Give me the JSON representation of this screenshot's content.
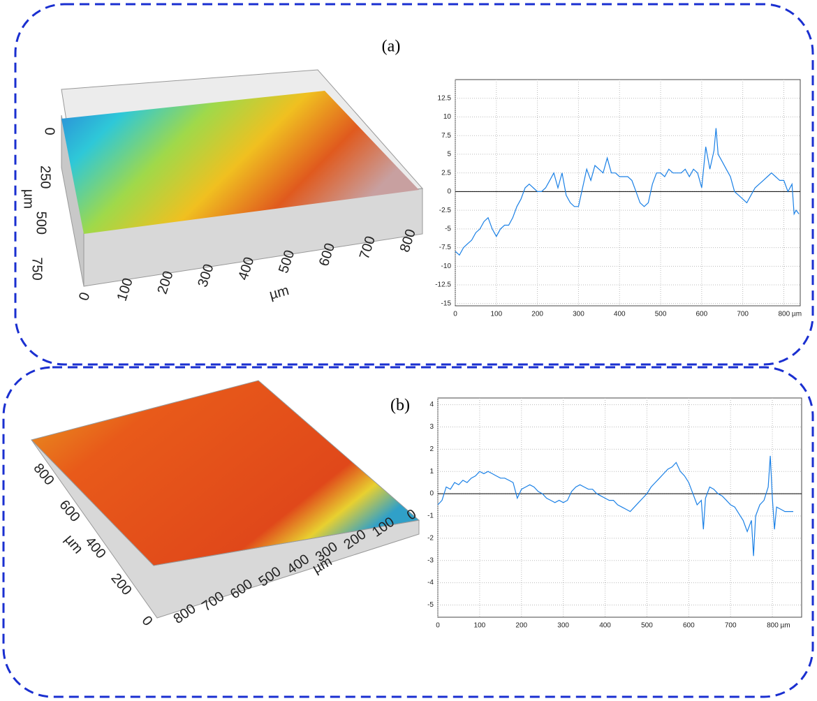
{
  "panels": [
    {
      "label": "(a)",
      "surface": {
        "y_ticks": [
          "0",
          "250",
          "500",
          "750"
        ],
        "y_unit": "µm",
        "x_ticks": [
          "0",
          "100",
          "200",
          "300",
          "400",
          "500",
          "600",
          "700",
          "800"
        ],
        "x_unit": "µm"
      }
    },
    {
      "label": "(b)",
      "surface": {
        "y_ticks": [
          "800",
          "600",
          "400",
          "200",
          "0"
        ],
        "y_unit": "µm",
        "x_ticks": [
          "800",
          "700",
          "600",
          "500",
          "400",
          "300",
          "200",
          "100",
          "0"
        ],
        "x_unit": "µm"
      }
    }
  ],
  "chart_data": [
    {
      "type": "line",
      "color": "#1a80e6",
      "grid": true,
      "zero_line": true,
      "xlim": [
        0,
        840
      ],
      "ylim": [
        -15.3,
        15
      ],
      "xticks": [
        0,
        100,
        200,
        300,
        400,
        500,
        600,
        700,
        {
          "value": 800,
          "label": "800 µm"
        }
      ],
      "yticks": [
        12.5,
        10,
        7.5,
        5,
        2.5,
        0,
        -2.5,
        -5,
        -7.5,
        -10,
        -12.5,
        -15
      ],
      "x": [
        0,
        10,
        20,
        30,
        40,
        50,
        60,
        70,
        80,
        90,
        100,
        110,
        120,
        130,
        140,
        150,
        160,
        170,
        180,
        190,
        200,
        210,
        220,
        230,
        240,
        250,
        260,
        270,
        280,
        290,
        300,
        310,
        320,
        330,
        340,
        350,
        360,
        370,
        380,
        390,
        400,
        410,
        420,
        430,
        440,
        450,
        460,
        470,
        480,
        490,
        500,
        510,
        520,
        530,
        540,
        550,
        560,
        570,
        580,
        590,
        600,
        610,
        620,
        630,
        635,
        640,
        650,
        660,
        670,
        680,
        690,
        700,
        710,
        720,
        730,
        740,
        750,
        760,
        770,
        780,
        790,
        800,
        810,
        820,
        825,
        830,
        837
      ],
      "values": [
        -8,
        -8.5,
        -7.5,
        -7,
        -6.5,
        -5.5,
        -5,
        -4,
        -3.5,
        -5,
        -6,
        -5,
        -4.5,
        -4.5,
        -3.5,
        -2,
        -1,
        0.5,
        1,
        0.5,
        0,
        0,
        0.5,
        1.5,
        2.5,
        0.5,
        2.5,
        -0.5,
        -1.5,
        -2,
        -2,
        0.5,
        3,
        1.5,
        3.5,
        3,
        2.5,
        4.5,
        2.5,
        2.5,
        2,
        2,
        2,
        1.5,
        0,
        -1.5,
        -2,
        -1.5,
        1,
        2.5,
        2.5,
        2,
        3,
        2.5,
        2.5,
        2.5,
        3,
        2,
        3,
        2.5,
        0.5,
        6,
        3,
        5.5,
        8.5,
        5,
        4,
        3,
        2,
        0,
        -0.5,
        -1,
        -1.5,
        -0.5,
        0.5,
        1,
        1.5,
        2,
        2.5,
        2,
        1.5,
        1.5,
        0,
        1,
        -3,
        -2.5,
        -3
      ]
    },
    {
      "type": "line",
      "color": "#1a80e6",
      "grid": true,
      "zero_line": true,
      "xlim": [
        0,
        870
      ],
      "ylim": [
        -5.55,
        4.3
      ],
      "xticks": [
        0,
        100,
        200,
        300,
        400,
        500,
        600,
        700,
        {
          "value": 800,
          "label": "800 µm"
        }
      ],
      "yticks": [
        4,
        3,
        2,
        1,
        0,
        -1,
        -2,
        -3,
        -4,
        -5
      ],
      "x": [
        0,
        10,
        20,
        30,
        40,
        50,
        60,
        70,
        80,
        90,
        100,
        110,
        120,
        130,
        140,
        150,
        160,
        170,
        180,
        190,
        200,
        210,
        220,
        230,
        240,
        250,
        260,
        270,
        280,
        290,
        300,
        310,
        320,
        330,
        340,
        350,
        360,
        370,
        380,
        390,
        400,
        410,
        420,
        430,
        440,
        450,
        460,
        470,
        480,
        490,
        500,
        510,
        520,
        530,
        540,
        550,
        560,
        570,
        580,
        590,
        600,
        610,
        620,
        630,
        635,
        640,
        650,
        660,
        670,
        680,
        690,
        700,
        710,
        720,
        730,
        740,
        750,
        755,
        760,
        770,
        780,
        790,
        795,
        800,
        805,
        810,
        820,
        830,
        840,
        850
      ],
      "values": [
        -0.5,
        -0.3,
        0.3,
        0.2,
        0.5,
        0.4,
        0.6,
        0.5,
        0.7,
        0.8,
        1.0,
        0.9,
        1.0,
        0.9,
        0.8,
        0.7,
        0.7,
        0.6,
        0.5,
        -0.2,
        0.2,
        0.3,
        0.4,
        0.3,
        0.1,
        0.0,
        -0.2,
        -0.3,
        -0.4,
        -0.3,
        -0.4,
        -0.3,
        0.1,
        0.3,
        0.4,
        0.3,
        0.2,
        0.2,
        0.0,
        -0.1,
        -0.2,
        -0.3,
        -0.3,
        -0.5,
        -0.6,
        -0.7,
        -0.8,
        -0.6,
        -0.4,
        -0.2,
        0.0,
        0.3,
        0.5,
        0.7,
        0.9,
        1.1,
        1.2,
        1.4,
        1.0,
        0.8,
        0.5,
        0.0,
        -0.5,
        -0.3,
        -1.6,
        -0.2,
        0.3,
        0.2,
        0.0,
        -0.1,
        -0.3,
        -0.5,
        -0.6,
        -0.9,
        -1.2,
        -1.7,
        -1.2,
        -2.8,
        -1.0,
        -0.5,
        -0.3,
        0.3,
        1.7,
        -0.2,
        -1.6,
        -0.6,
        -0.7,
        -0.8,
        -0.8,
        -0.8
      ]
    }
  ]
}
